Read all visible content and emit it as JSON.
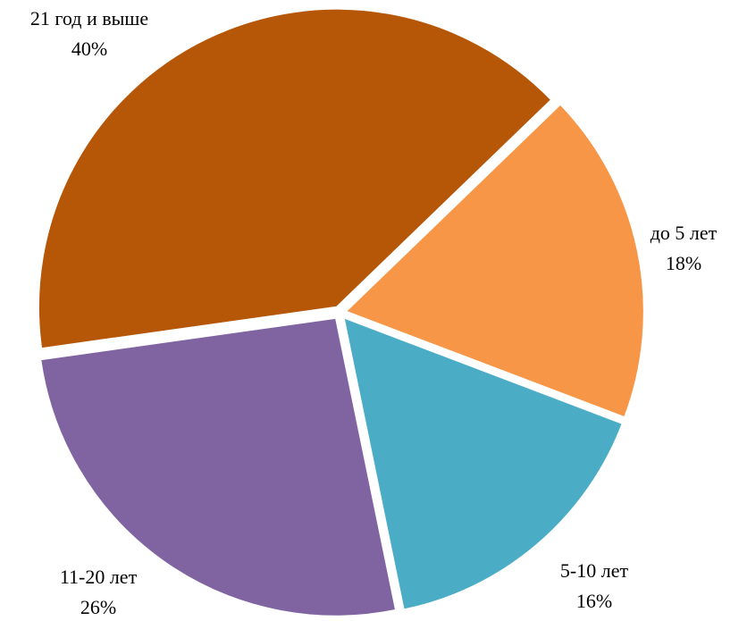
{
  "chart_data": {
    "type": "pie",
    "categories": [
      "до 5 лет",
      "5-10 лет",
      "11-20 лет",
      "21 год и выше"
    ],
    "values": [
      18,
      16,
      26,
      40
    ],
    "value_labels": [
      "18%",
      "16%",
      "26%",
      "40%"
    ],
    "colors": [
      "#F79646",
      "#4BACC6",
      "#8064A2",
      "#B65708"
    ]
  }
}
